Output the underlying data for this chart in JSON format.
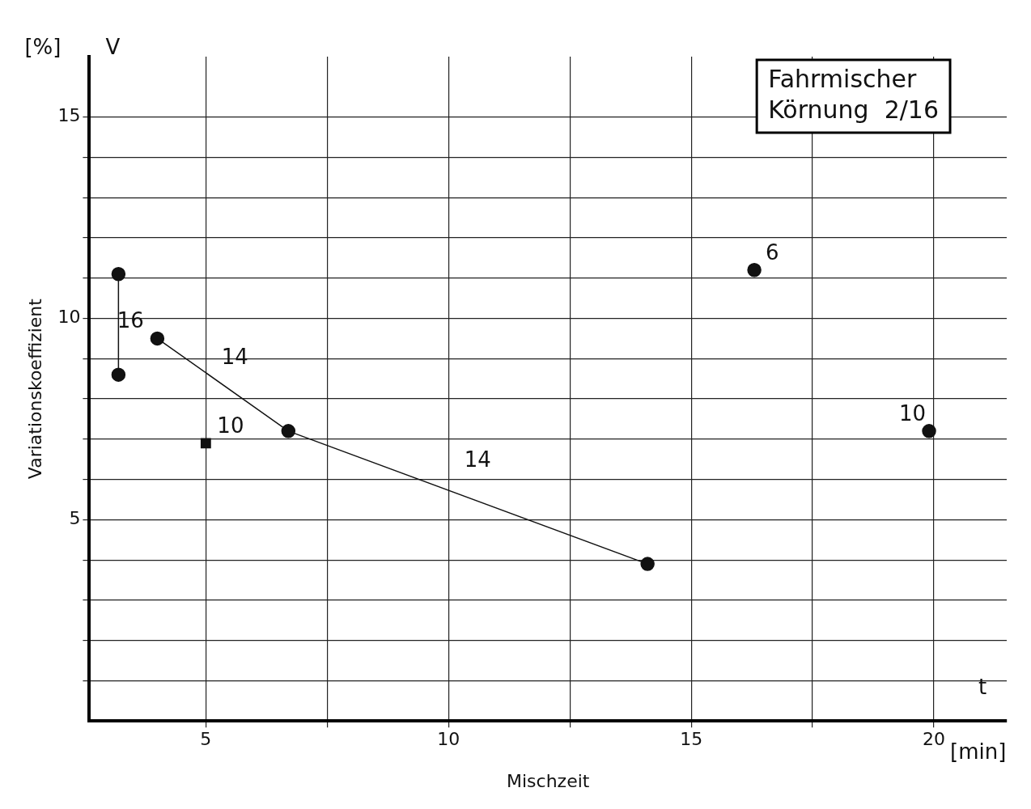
{
  "chart_data": {
    "type": "scatter",
    "title": "Fahrmischer",
    "subtitle": "Körnung  2/16",
    "xlabel": "Mischzeit",
    "ylabel": "Variationskoeffizient",
    "xlim": [
      2.6,
      21.5
    ],
    "ylim": [
      0,
      16.5
    ],
    "xticks": [
      5,
      {
        "value": 7.5,
        "label": null
      },
      10,
      {
        "value": 12.5,
        "label": null
      },
      15,
      {
        "value": 17.5,
        "label": null
      },
      20
    ],
    "yticks": [
      {
        "value": 1,
        "label": null
      },
      {
        "value": 2,
        "label": null
      },
      {
        "value": 3,
        "label": null
      },
      {
        "value": 4,
        "label": null
      },
      5,
      {
        "value": 6,
        "label": null
      },
      {
        "value": 7,
        "label": null
      },
      {
        "value": 8,
        "label": null
      },
      {
        "value": 9,
        "label": null
      },
      10,
      {
        "value": 11,
        "label": null
      },
      {
        "value": 12,
        "label": null
      },
      {
        "value": 13,
        "label": null
      },
      {
        "value": 14,
        "label": null
      },
      15
    ],
    "grid": true,
    "marker": "circle",
    "line_style": "solid",
    "series": [
      {
        "type": "line",
        "color": "#111111",
        "x": [
          3.2,
          3.2
        ],
        "values": [
          11.1,
          8.6
        ]
      },
      {
        "type": "line",
        "color": "#111111",
        "x": [
          4.0,
          6.7,
          14.1
        ],
        "values": [
          9.5,
          7.2,
          3.9
        ]
      },
      {
        "type": "scatter",
        "color": "#111111",
        "marker": "square",
        "x": [
          5.0
        ],
        "values": [
          6.9
        ]
      },
      {
        "type": "scatter",
        "color": "#111111",
        "x": [
          16.3
        ],
        "values": [
          11.2
        ]
      },
      {
        "type": "scatter",
        "color": "#111111",
        "x": [
          19.9
        ],
        "values": [
          7.2
        ]
      }
    ],
    "annotations": [
      "16",
      "14",
      "14",
      {
        "text": "10",
        "x": 5.0,
        "y": 6.9
      },
      {
        "text": "6",
        "x": 16.3,
        "y": 11.2
      },
      {
        "text": "10",
        "x": 19.9,
        "y": 7.2
      },
      "[%]",
      "V",
      "t",
      "[min]"
    ]
  }
}
